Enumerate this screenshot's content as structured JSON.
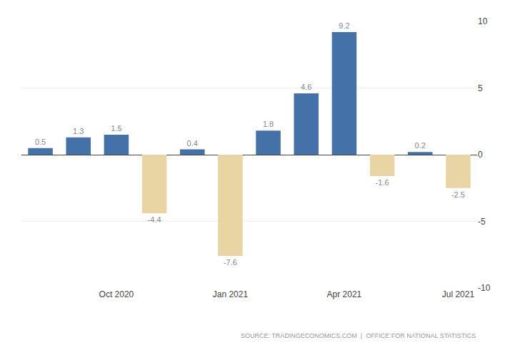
{
  "chart_data": {
    "type": "bar",
    "categories": [
      null,
      null,
      "Oct 2020",
      null,
      null,
      "Jan 2021",
      null,
      null,
      "Apr 2021",
      null,
      null,
      "Jul 2021"
    ],
    "values": [
      0.5,
      1.3,
      1.5,
      -4.4,
      0.4,
      -7.6,
      1.8,
      4.6,
      9.2,
      -1.6,
      0.2,
      -2.5
    ],
    "colors": [
      "#4472a8",
      "#4472a8",
      "#4472a8",
      "#e8d5a3",
      "#4472a8",
      "#e8d5a3",
      "#4472a8",
      "#4472a8",
      "#4472a8",
      "#e8d5a3",
      "#4472a8",
      "#e8d5a3"
    ],
    "ylim": [
      -10,
      10
    ],
    "yticks": [
      -10,
      -5,
      0,
      5,
      10
    ],
    "grid": true,
    "data_labels": true,
    "annotations": [
      "SOURCE: TRADINGECONOMICS.COM  |  OFFICE FOR NATIONAL STATISTICS"
    ]
  }
}
